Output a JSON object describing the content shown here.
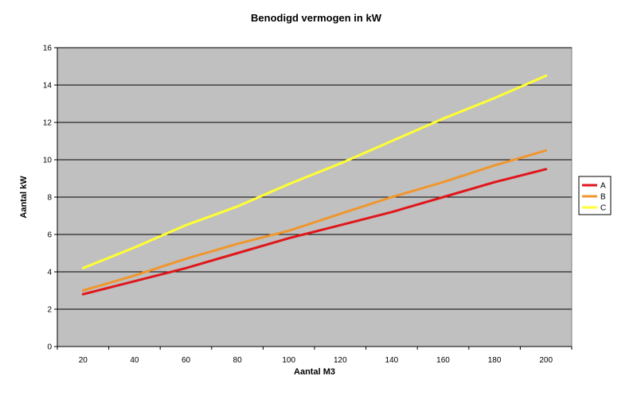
{
  "chart_data": {
    "type": "line",
    "title": "Benodigd vermogen in kW",
    "xlabel": "Aantal M3",
    "ylabel": "Aantal kW",
    "x": [
      20,
      40,
      60,
      80,
      100,
      120,
      140,
      160,
      180,
      200
    ],
    "xlim": [
      10,
      210
    ],
    "ylim": [
      0,
      16
    ],
    "yticks": [
      0,
      2,
      4,
      6,
      8,
      10,
      12,
      14,
      16
    ],
    "grid": "horizontal",
    "legend_position": "right",
    "plot_background": "#c0c0c0",
    "series": [
      {
        "name": "A",
        "color": "#e0161b",
        "values": [
          2.8,
          3.5,
          4.2,
          5.0,
          5.8,
          6.5,
          7.2,
          8.0,
          8.8,
          9.5
        ]
      },
      {
        "name": "B",
        "color": "#f0962d",
        "values": [
          3.0,
          3.8,
          4.7,
          5.5,
          6.2,
          7.1,
          8.0,
          8.8,
          9.7,
          10.5
        ]
      },
      {
        "name": "C",
        "color": "#ffff33",
        "values": [
          4.2,
          5.3,
          6.5,
          7.5,
          8.7,
          9.8,
          11.0,
          12.2,
          13.3,
          14.5
        ]
      }
    ]
  }
}
